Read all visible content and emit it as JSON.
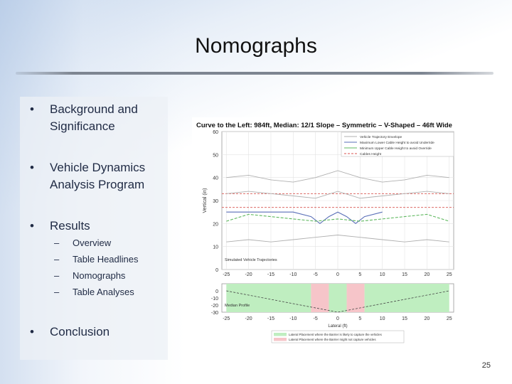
{
  "slide": {
    "title": "Nomographs",
    "bullets": [
      {
        "text": "Background and Significance"
      },
      {
        "text": "Vehicle Dynamics Analysis Program"
      },
      {
        "text": "Results",
        "sub": [
          "Overview",
          "Table Headlines",
          "Nomographs",
          "Table Analyses"
        ]
      },
      {
        "text": "Conclusion"
      }
    ],
    "bullet_glyph": "•",
    "sub_glyph": "–",
    "page_number": "25"
  },
  "chart_data": [
    {
      "type": "line",
      "title": "Curve to the Left: 984ft, Median: 12/1 Slope – Symmetric – V-Shaped – 46ft Wide",
      "xlabel": "",
      "ylabel": "Vertical (in)",
      "xlim": [
        -26,
        26
      ],
      "ylim": [
        0,
        60
      ],
      "x_ticks": [
        "-25",
        "-20",
        "-15",
        "-10",
        "-5",
        "0",
        "5",
        "10",
        "15",
        "20",
        "25"
      ],
      "y_ticks": [
        "0",
        "10",
        "20",
        "30",
        "40",
        "50",
        "60"
      ],
      "grid": true,
      "legend_position": "top-right",
      "legend": [
        {
          "label": "Vehicle Trajectory Envelope",
          "color": "#b0b0b0"
        },
        {
          "label": "Maximum Lower Cable Height to avoid Underride",
          "color": "#5a6fb8"
        },
        {
          "label": "Minimum Upper Cable Height to avoid Override",
          "color": "#5fb85f"
        },
        {
          "label": "Cables Height",
          "color": "#d9534f"
        }
      ],
      "annotation": "Simulated Vehicle Trajectories",
      "series": [
        {
          "name": "Vehicle Trajectory Envelope",
          "kind": "trajectory",
          "color": "#b0b0b0",
          "x": [
            -25,
            -20,
            -15,
            -10,
            -5,
            0,
            5,
            10,
            15,
            20,
            25
          ],
          "y": [
            40,
            41,
            39,
            38,
            40,
            43,
            40,
            38,
            39,
            41,
            40
          ]
        },
        {
          "name": "Vehicle Trajectory Envelope",
          "kind": "trajectory",
          "color": "#b0b0b0",
          "x": [
            -25,
            -20,
            -15,
            -10,
            -5,
            0,
            5,
            10,
            15,
            20,
            25
          ],
          "y": [
            33,
            34,
            33,
            32,
            31,
            34,
            31,
            32,
            33,
            34,
            33
          ]
        },
        {
          "name": "Vehicle Trajectory Envelope",
          "kind": "trajectory",
          "color": "#b0b0b0",
          "x": [
            -25,
            -20,
            -15,
            -10,
            -5,
            0,
            5,
            10,
            15,
            20,
            25
          ],
          "y": [
            12,
            13,
            12,
            13,
            14,
            15,
            14,
            13,
            12,
            13,
            12
          ]
        },
        {
          "name": "Maximum Lower Cable Height to avoid Underride",
          "kind": "lower",
          "color": "#5a6fb8",
          "x": [
            -25,
            -20,
            -15,
            -10,
            -6,
            -4,
            -2,
            0,
            2,
            4,
            6,
            10
          ],
          "y": [
            25,
            25,
            25,
            25,
            23,
            20,
            23,
            25,
            23,
            20,
            23,
            25
          ]
        },
        {
          "name": "Minimum Upper Cable Height to avoid Override",
          "kind": "upper",
          "color": "#5fb85f",
          "x": [
            -25,
            -20,
            -15,
            -10,
            -5,
            0,
            5,
            10,
            15,
            20,
            25
          ],
          "y": [
            21,
            24,
            23,
            22,
            21,
            22,
            21,
            22,
            23,
            24,
            21
          ]
        }
      ],
      "reference_lines": [
        {
          "name": "Cables Height",
          "y": 33,
          "color": "#d9534f"
        },
        {
          "name": "Cables Height",
          "y": 27,
          "color": "#d9534f"
        }
      ]
    },
    {
      "type": "area",
      "title": "",
      "xlabel": "Lateral (ft)",
      "ylabel": "",
      "xlim": [
        -26,
        26
      ],
      "ylim": [
        -30,
        10
      ],
      "x_ticks": [
        "-25",
        "-20",
        "-15",
        "-10",
        "-5",
        "0",
        "5",
        "10",
        "15",
        "20",
        "25"
      ],
      "y_ticks": [
        "0",
        "-10",
        "-20",
        "-30"
      ],
      "annotation": "Median Profile",
      "profile": {
        "x": [
          -25,
          0,
          25
        ],
        "y": [
          0,
          -30,
          0
        ]
      },
      "regions": [
        {
          "from": -25,
          "to": -6,
          "kind": "ok",
          "color": "#bfeec0"
        },
        {
          "from": -6,
          "to": -2,
          "kind": "bad",
          "color": "#f6c5c9"
        },
        {
          "from": -2,
          "to": 2,
          "kind": "ok",
          "color": "#bfeec0"
        },
        {
          "from": 2,
          "to": 6,
          "kind": "bad",
          "color": "#f6c5c9"
        },
        {
          "from": 6,
          "to": 25,
          "kind": "ok",
          "color": "#bfeec0"
        }
      ],
      "legend": [
        {
          "label": "Lateral Placement where the Barrier is likely to capture the vehicles",
          "color": "#bfeec0"
        },
        {
          "label": "Lateral Placement where the Barrier might not capture vehicles",
          "color": "#f6c5c9"
        }
      ]
    }
  ]
}
